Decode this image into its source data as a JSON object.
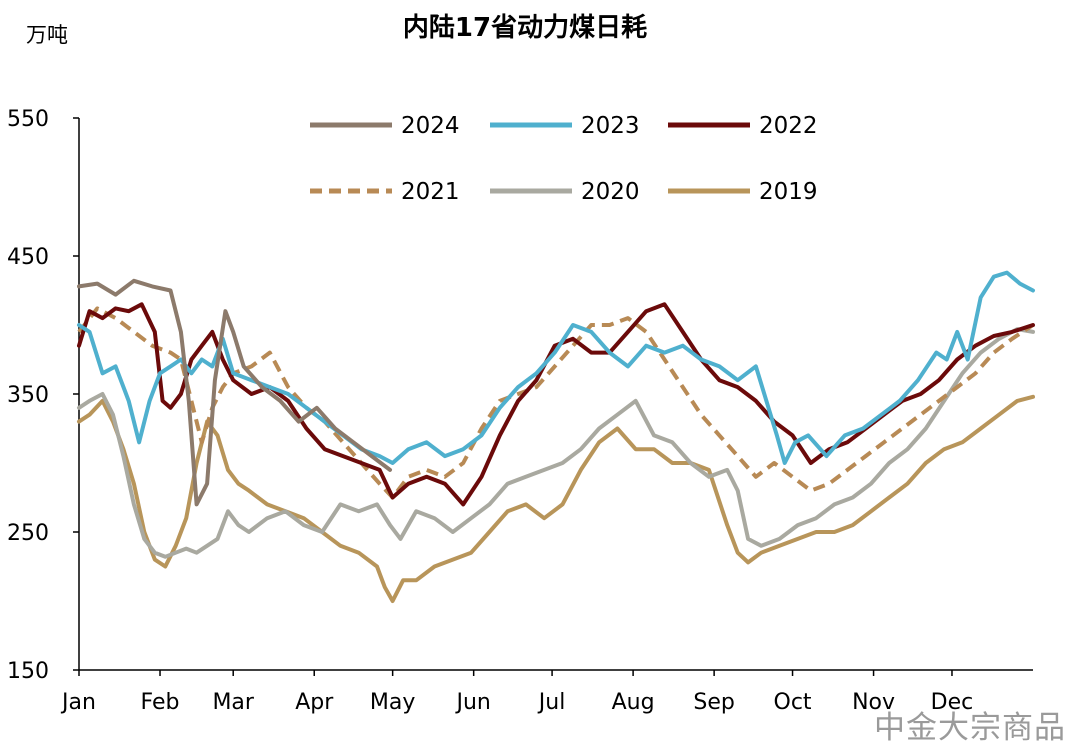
{
  "watermark": "中金大宗商品",
  "chart_data": {
    "type": "line",
    "title": "内陆17省动力煤日耗",
    "ylabel": "万吨",
    "xlabel": "",
    "ylim": [
      150,
      550
    ],
    "yticks": [
      150,
      250,
      350,
      450,
      550
    ],
    "x_unit": "day of year",
    "xlim": [
      1,
      366
    ],
    "x_tick_labels": [
      "Jan",
      "Feb",
      "Mar",
      "Apr",
      "May",
      "Jun",
      "Jul",
      "Aug",
      "Sep",
      "Oct",
      "Nov",
      "Dec"
    ],
    "x_tick_days": [
      1,
      32,
      60,
      91,
      121,
      152,
      182,
      213,
      244,
      274,
      305,
      335
    ],
    "legend": {
      "placement": "top-center",
      "columns": 3
    },
    "series": [
      {
        "name": "2024",
        "color": "#8C7A6B",
        "dash": "solid",
        "width": 4,
        "x": [
          1,
          8,
          15,
          22,
          29,
          36,
          40,
          43,
          46,
          50,
          53,
          57,
          60,
          64,
          71,
          78,
          85,
          92,
          99,
          106,
          113,
          120
        ],
        "y": [
          428,
          430,
          422,
          432,
          428,
          425,
          395,
          345,
          270,
          285,
          360,
          410,
          395,
          370,
          355,
          345,
          330,
          340,
          325,
          315,
          305,
          295
        ]
      },
      {
        "name": "2023",
        "color": "#4FB0CE",
        "dash": "solid",
        "width": 4,
        "x": [
          1,
          5,
          10,
          15,
          20,
          24,
          28,
          32,
          36,
          40,
          44,
          48,
          52,
          56,
          60,
          67,
          74,
          81,
          88,
          95,
          102,
          109,
          116,
          121,
          127,
          134,
          141,
          148,
          155,
          162,
          169,
          176,
          183,
          190,
          197,
          204,
          211,
          218,
          225,
          232,
          239,
          246,
          253,
          260,
          264,
          268,
          271,
          275,
          280,
          287,
          294,
          301,
          308,
          315,
          322,
          329,
          333,
          337,
          341,
          346,
          351,
          356,
          361,
          366
        ],
        "y": [
          400,
          395,
          365,
          370,
          345,
          315,
          345,
          365,
          370,
          375,
          365,
          375,
          370,
          390,
          365,
          360,
          355,
          350,
          340,
          330,
          320,
          310,
          305,
          300,
          310,
          315,
          305,
          310,
          320,
          340,
          355,
          365,
          380,
          400,
          395,
          380,
          370,
          385,
          380,
          385,
          375,
          370,
          360,
          370,
          345,
          320,
          300,
          315,
          320,
          305,
          320,
          325,
          335,
          345,
          360,
          380,
          375,
          395,
          375,
          420,
          435,
          438,
          430,
          425
        ]
      },
      {
        "name": "2022",
        "color": "#6B0A0A",
        "dash": "solid",
        "width": 4,
        "x": [
          1,
          5,
          10,
          15,
          20,
          25,
          30,
          33,
          36,
          40,
          44,
          48,
          52,
          56,
          60,
          67,
          74,
          81,
          88,
          95,
          102,
          109,
          116,
          121,
          127,
          134,
          141,
          148,
          155,
          162,
          169,
          176,
          183,
          190,
          197,
          204,
          211,
          218,
          225,
          232,
          239,
          246,
          253,
          260,
          267,
          274,
          281,
          288,
          295,
          302,
          309,
          316,
          323,
          330,
          337,
          344,
          351,
          358,
          366
        ],
        "y": [
          385,
          410,
          405,
          412,
          410,
          415,
          395,
          345,
          340,
          350,
          375,
          385,
          395,
          375,
          360,
          350,
          355,
          345,
          325,
          310,
          305,
          300,
          295,
          275,
          285,
          290,
          285,
          270,
          290,
          320,
          345,
          360,
          385,
          390,
          380,
          380,
          395,
          410,
          415,
          395,
          375,
          360,
          355,
          345,
          330,
          320,
          300,
          310,
          315,
          325,
          335,
          345,
          350,
          360,
          375,
          385,
          392,
          395,
          400
        ]
      },
      {
        "name": "2021",
        "color": "#B88A55",
        "dash": "dashed",
        "width": 4,
        "x": [
          1,
          8,
          15,
          22,
          29,
          36,
          40,
          44,
          48,
          52,
          56,
          60,
          67,
          74,
          81,
          88,
          95,
          102,
          109,
          116,
          121,
          127,
          134,
          141,
          148,
          155,
          162,
          169,
          176,
          183,
          190,
          197,
          204,
          211,
          218,
          225,
          232,
          239,
          246,
          253,
          260,
          267,
          274,
          281,
          288,
          295,
          302,
          309,
          316,
          323,
          330,
          337,
          344,
          351,
          358,
          366
        ],
        "y": [
          395,
          412,
          405,
          395,
          385,
          380,
          375,
          345,
          315,
          340,
          355,
          365,
          370,
          380,
          355,
          340,
          330,
          315,
          300,
          285,
          275,
          290,
          295,
          290,
          300,
          325,
          345,
          350,
          355,
          370,
          385,
          400,
          400,
          405,
          395,
          375,
          355,
          335,
          320,
          305,
          290,
          300,
          290,
          280,
          285,
          295,
          305,
          315,
          325,
          335,
          345,
          355,
          365,
          380,
          390,
          400
        ]
      },
      {
        "name": "2020",
        "color": "#A9A9A0",
        "dash": "solid",
        "width": 4,
        "x": [
          1,
          5,
          10,
          14,
          18,
          22,
          26,
          30,
          34,
          38,
          42,
          46,
          50,
          54,
          58,
          62,
          66,
          73,
          80,
          87,
          94,
          101,
          108,
          115,
          120,
          124,
          130,
          137,
          144,
          151,
          158,
          165,
          172,
          179,
          186,
          193,
          200,
          207,
          214,
          221,
          228,
          235,
          242,
          249,
          253,
          257,
          262,
          269,
          276,
          283,
          290,
          297,
          304,
          311,
          318,
          325,
          332,
          339,
          346,
          353,
          360,
          366
        ],
        "y": [
          340,
          345,
          350,
          335,
          305,
          270,
          245,
          235,
          232,
          235,
          238,
          235,
          240,
          245,
          265,
          255,
          250,
          260,
          265,
          255,
          250,
          270,
          265,
          270,
          255,
          245,
          265,
          260,
          250,
          260,
          270,
          285,
          290,
          295,
          300,
          310,
          325,
          335,
          345,
          320,
          315,
          300,
          290,
          295,
          280,
          245,
          240,
          245,
          255,
          260,
          270,
          275,
          285,
          300,
          310,
          325,
          345,
          365,
          380,
          390,
          397,
          395
        ]
      },
      {
        "name": "2019",
        "color": "#B8955A",
        "dash": "solid",
        "width": 4,
        "x": [
          1,
          5,
          10,
          14,
          18,
          22,
          26,
          30,
          34,
          38,
          42,
          46,
          50,
          54,
          58,
          62,
          66,
          73,
          80,
          87,
          94,
          101,
          108,
          115,
          118,
          121,
          125,
          130,
          137,
          144,
          151,
          158,
          165,
          172,
          179,
          186,
          193,
          200,
          207,
          214,
          221,
          228,
          235,
          242,
          249,
          253,
          257,
          262,
          269,
          276,
          283,
          290,
          297,
          304,
          311,
          318,
          325,
          332,
          339,
          346,
          353,
          360,
          366
        ],
        "y": [
          330,
          335,
          345,
          330,
          310,
          285,
          250,
          230,
          225,
          240,
          260,
          300,
          330,
          320,
          295,
          285,
          280,
          270,
          265,
          260,
          250,
          240,
          235,
          225,
          210,
          200,
          215,
          215,
          225,
          230,
          235,
          250,
          265,
          270,
          260,
          270,
          295,
          315,
          325,
          310,
          310,
          300,
          300,
          295,
          255,
          235,
          228,
          235,
          240,
          245,
          250,
          250,
          255,
          265,
          275,
          285,
          300,
          310,
          315,
          325,
          335,
          345,
          348
        ]
      }
    ]
  }
}
